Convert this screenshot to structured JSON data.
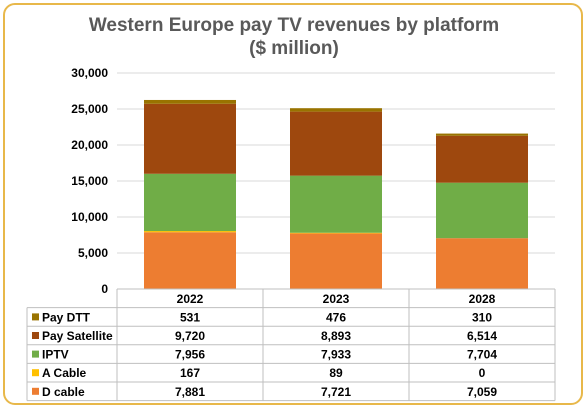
{
  "chart_data": {
    "type": "bar",
    "stacked": true,
    "title": "Western Europe pay TV revenues by platform",
    "subtitle": "($ million)",
    "categories": [
      "2022",
      "2023",
      "2028"
    ],
    "ylim": [
      0,
      30000
    ],
    "yticks": [
      0,
      5000,
      10000,
      15000,
      20000,
      25000,
      30000
    ],
    "ytick_labels": [
      "0",
      "5,000",
      "10,000",
      "15,000",
      "20,000",
      "25,000",
      "30,000"
    ],
    "grid": true,
    "legend": "data-table",
    "series": [
      {
        "name": "D cable",
        "color": "#ed7d31",
        "values": [
          7881,
          7721,
          7059
        ],
        "labels": [
          "7,881",
          "7,721",
          "7,059"
        ]
      },
      {
        "name": "A Cable",
        "color": "#ffc000",
        "values": [
          167,
          89,
          0
        ],
        "labels": [
          "167",
          "89",
          "0"
        ]
      },
      {
        "name": "IPTV",
        "color": "#70ad47",
        "values": [
          7956,
          7933,
          7704
        ],
        "labels": [
          "7,956",
          "7,933",
          "7,704"
        ]
      },
      {
        "name": "Pay Satellite",
        "color": "#9e480e",
        "values": [
          9720,
          8893,
          6514
        ],
        "labels": [
          "9,720",
          "8,893",
          "6,514"
        ]
      },
      {
        "name": "Pay DTT",
        "color": "#997300",
        "values": [
          531,
          476,
          310
        ],
        "labels": [
          "531",
          "476",
          "310"
        ]
      }
    ]
  }
}
